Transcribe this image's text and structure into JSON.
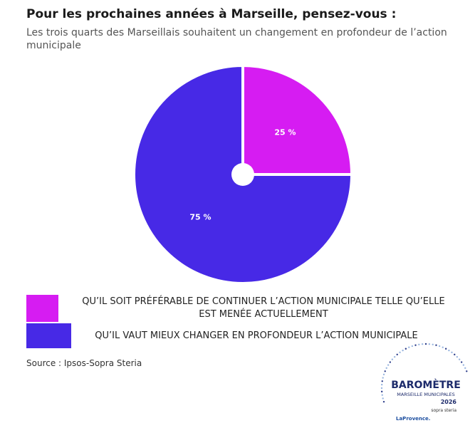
{
  "chart_data": {
    "type": "pie",
    "title": "Pour les prochaines années à Marseille, pensez-vous :",
    "subtitle": "Les trois quarts des Marseillais souhaitent un changement en profondeur de l’action municipale",
    "categories": [
      "QU’IL SOIT PRÉFÉRABLE DE CONTINUER L’ACTION MUNICIPALE TELLE QU’ELLE EST MENÉE ACTUELLEMENT",
      "QU’IL VAUT MIEUX CHANGER EN PROFONDEUR L’ACTION MUNICIPALE"
    ],
    "values": [
      25,
      75
    ],
    "value_labels": [
      "25 %",
      "75 %"
    ],
    "colors": [
      "#d61cf2",
      "#4729e6"
    ],
    "source": "Source : Ipsos-Sopra Steria"
  },
  "logo": {
    "title": "BAROMÈTRE",
    "subtitle": "MARSEILLE MUNICIPALES",
    "year": "2026",
    "partners": [
      "sopra steria",
      "LaProvence."
    ]
  }
}
